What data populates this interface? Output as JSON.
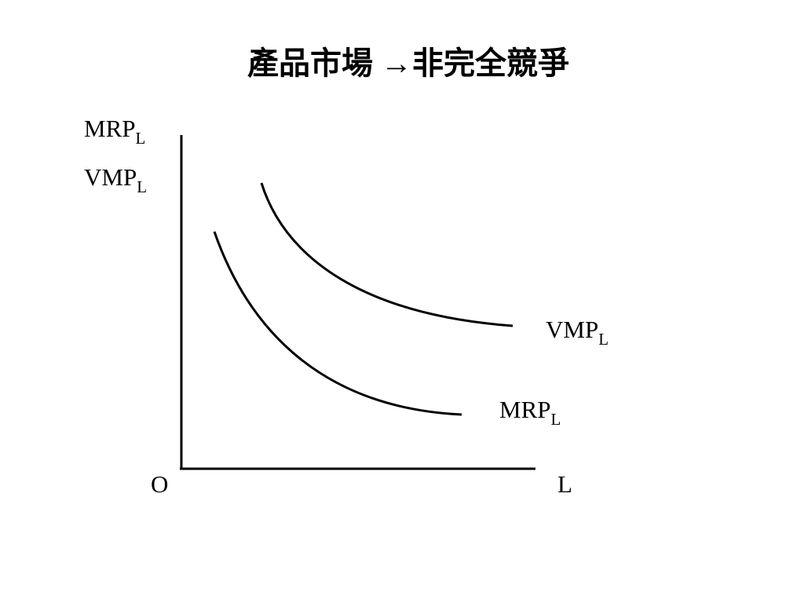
{
  "title": "產品市場 →非完全競爭",
  "y_axis_labels": [
    {
      "text": "MRP",
      "subscript": "L"
    },
    {
      "text": "VMP",
      "subscript": "L"
    }
  ],
  "origin_label": "O",
  "x_axis_label": "L",
  "curves": [
    {
      "label": {
        "text": "VMP",
        "subscript": "L"
      }
    },
    {
      "label": {
        "text": "MRP",
        "subscript": "L"
      }
    }
  ]
}
